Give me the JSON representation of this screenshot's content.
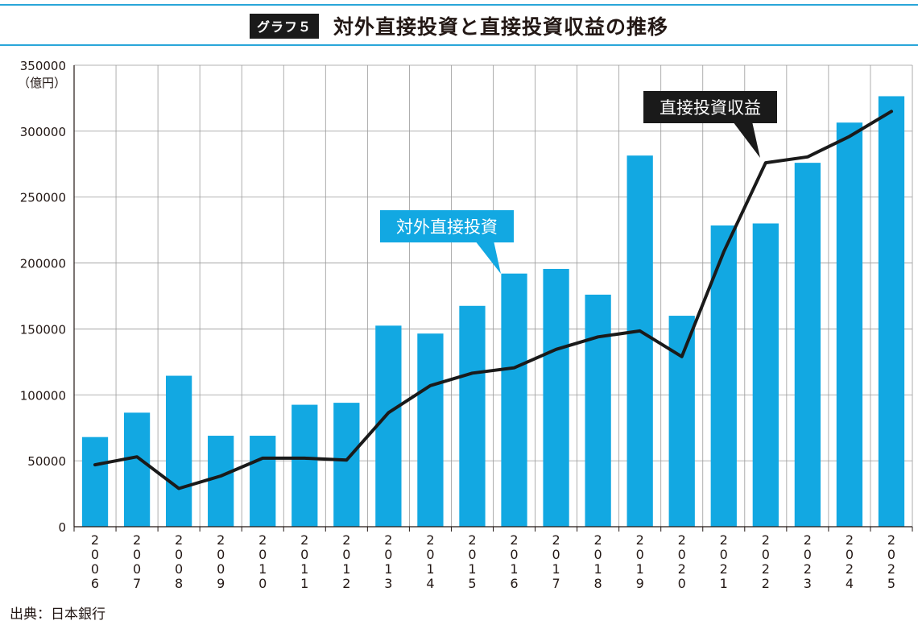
{
  "header": {
    "badge": "グラフ５",
    "title": "対外直接投資と直接投資収益の推移"
  },
  "footer": {
    "source": "出典：日本銀行"
  },
  "colors": {
    "bar": "#12a8e2",
    "line": "#1a1a1a",
    "accent_rule": "#2aa6d9",
    "grid": "#9a9a9a"
  },
  "chart_data": {
    "type": "bar",
    "title": "対外直接投資と直接投資収益の推移",
    "y_unit_label": "（億円）",
    "ylim": [
      0,
      350000
    ],
    "y_ticks": [
      0,
      50000,
      100000,
      150000,
      200000,
      250000,
      300000,
      350000
    ],
    "categories": [
      "2006",
      "2007",
      "2008",
      "2009",
      "2010",
      "2011",
      "2012",
      "2013",
      "2014",
      "2015",
      "2016",
      "2017",
      "2018",
      "2019",
      "2020",
      "2021",
      "2022",
      "2023",
      "2024",
      "2025"
    ],
    "series": [
      {
        "name": "対外直接投資",
        "type": "bar",
        "values": [
          68000,
          86500,
          114500,
          69000,
          69000,
          92500,
          94000,
          152500,
          146500,
          167500,
          192000,
          195500,
          176000,
          281500,
          160000,
          228500,
          230000,
          276000,
          306500,
          326500
        ]
      },
      {
        "name": "直接投資収益",
        "type": "line",
        "values": [
          47000,
          53000,
          29000,
          38500,
          52000,
          52000,
          50500,
          86500,
          107000,
          116500,
          120500,
          134500,
          144000,
          148500,
          129000,
          208500,
          276000,
          280500,
          296000,
          315000
        ]
      }
    ],
    "annotations": [
      {
        "text": "対外直接投資",
        "series": "対外直接投資"
      },
      {
        "text": "直接投資収益",
        "series": "直接投資収益"
      }
    ]
  }
}
